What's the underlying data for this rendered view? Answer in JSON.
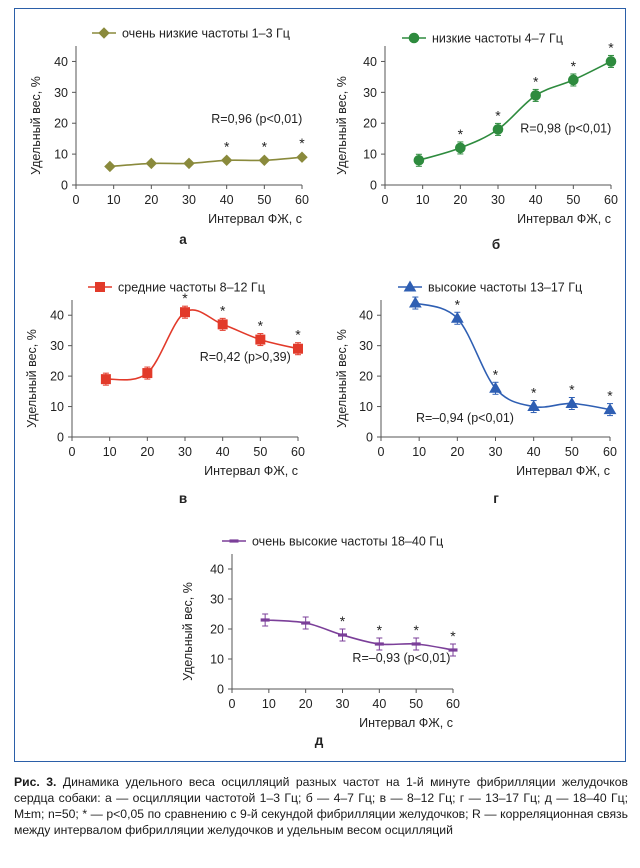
{
  "colors": {
    "frame": "#2b5fa8"
  },
  "chart_data": [
    {
      "id": "a",
      "type": "line",
      "panel_label": "а",
      "legend": "очень низкие частоты 1–3 Гц",
      "color": "#8a8a3c",
      "marker": "diamond",
      "xlabel": "Интервал ФЖ, с",
      "ylabel": "Удельный вес, %",
      "xlim": [
        0,
        60
      ],
      "ylim": [
        0,
        45
      ],
      "xticks": [
        0,
        10,
        20,
        30,
        40,
        50,
        60
      ],
      "yticks": [
        0,
        10,
        20,
        30,
        40
      ],
      "x": [
        9,
        20,
        30,
        40,
        50,
        60
      ],
      "y": [
        6,
        7,
        7,
        8,
        8,
        9
      ],
      "significant": [
        false,
        false,
        false,
        true,
        true,
        true
      ],
      "errorbars": false,
      "annotation": "R=0,96 (p<0,01)",
      "annotation_at": [
        48,
        20
      ]
    },
    {
      "id": "b",
      "type": "line",
      "panel_label": "б",
      "legend": "низкие частоты 4–7 Гц",
      "color": "#2e8b3e",
      "marker": "circle",
      "xlabel": "Интервал ФЖ, с",
      "ylabel": "Удельный вес, %",
      "xlim": [
        0,
        60
      ],
      "ylim": [
        0,
        45
      ],
      "xticks": [
        0,
        10,
        20,
        30,
        40,
        50,
        60
      ],
      "yticks": [
        0,
        10,
        20,
        30,
        40
      ],
      "x": [
        9,
        20,
        30,
        40,
        50,
        60
      ],
      "y": [
        8,
        12,
        18,
        29,
        34,
        40
      ],
      "significant": [
        false,
        true,
        true,
        true,
        true,
        true
      ],
      "errorbars": true,
      "annotation": "R=0,98 (p<0,01)",
      "annotation_at": [
        48,
        17
      ]
    },
    {
      "id": "v",
      "type": "line",
      "panel_label": "в",
      "legend": "средние частоты 8–12 Гц",
      "color": "#e23a2a",
      "marker": "square",
      "xlabel": "Интервал ФЖ, с",
      "ylabel": "Удельный вес, %",
      "xlim": [
        0,
        60
      ],
      "ylim": [
        0,
        45
      ],
      "xticks": [
        0,
        10,
        20,
        30,
        40,
        50,
        60
      ],
      "yticks": [
        0,
        10,
        20,
        30,
        40
      ],
      "x": [
        9,
        20,
        30,
        40,
        50,
        60
      ],
      "y": [
        19,
        21,
        41,
        37,
        32,
        29
      ],
      "significant": [
        false,
        false,
        true,
        true,
        true,
        true
      ],
      "errorbars": true,
      "annotation": "R=0,42 (p>0,39)",
      "annotation_at": [
        46,
        25
      ]
    },
    {
      "id": "g",
      "type": "line",
      "panel_label": "г",
      "legend": "высокие частоты 13–17 Гц",
      "color": "#2f5fb3",
      "marker": "triangle",
      "xlabel": "Интервал ФЖ, с",
      "ylabel": "Удельный вес, %",
      "xlim": [
        0,
        60
      ],
      "ylim": [
        0,
        45
      ],
      "xticks": [
        0,
        10,
        20,
        30,
        40,
        50,
        60
      ],
      "yticks": [
        0,
        10,
        20,
        30,
        40
      ],
      "x": [
        9,
        20,
        30,
        40,
        50,
        60
      ],
      "y": [
        44,
        39,
        16,
        10,
        11,
        9
      ],
      "significant": [
        false,
        true,
        true,
        true,
        true,
        true
      ],
      "errorbars": true,
      "annotation": "R=–0,94 (p<0,01)",
      "annotation_at": [
        22,
        5
      ]
    },
    {
      "id": "d",
      "type": "line",
      "panel_label": "д",
      "legend": "очень высокие частоты 18–40 Гц",
      "color": "#7b3f99",
      "marker": "dash",
      "xlabel": "Интервал ФЖ, с",
      "ylabel": "Удельный вес, %",
      "xlim": [
        0,
        60
      ],
      "ylim": [
        0,
        45
      ],
      "xticks": [
        0,
        10,
        20,
        30,
        40,
        50,
        60
      ],
      "yticks": [
        0,
        10,
        20,
        30,
        40
      ],
      "x": [
        9,
        20,
        30,
        40,
        50,
        60
      ],
      "y": [
        23,
        22,
        18,
        15,
        15,
        13
      ],
      "significant": [
        false,
        false,
        true,
        true,
        true,
        true
      ],
      "errorbars": true,
      "annotation": "R=–0,93 (p<0,01)",
      "annotation_at": [
        46,
        9
      ]
    }
  ],
  "caption": {
    "label": "Рис. 3.",
    "text": "Динамика удельного веса осцилляций разных частот на 1-й минуте фибрилляции желудочков сердца собаки: а — осцилляции частотой 1–3 Гц; б — 4–7 Гц; в — 8–12 Гц; г — 13–17 Гц; д — 18–40 Гц; M±m; n=50; * — p<0,05 по сравнению с 9-й секундой фибрилляции желудочков; R — корреляционная связь между интервалом фибрилляции желудочков и удельным весом осцилляций"
  }
}
